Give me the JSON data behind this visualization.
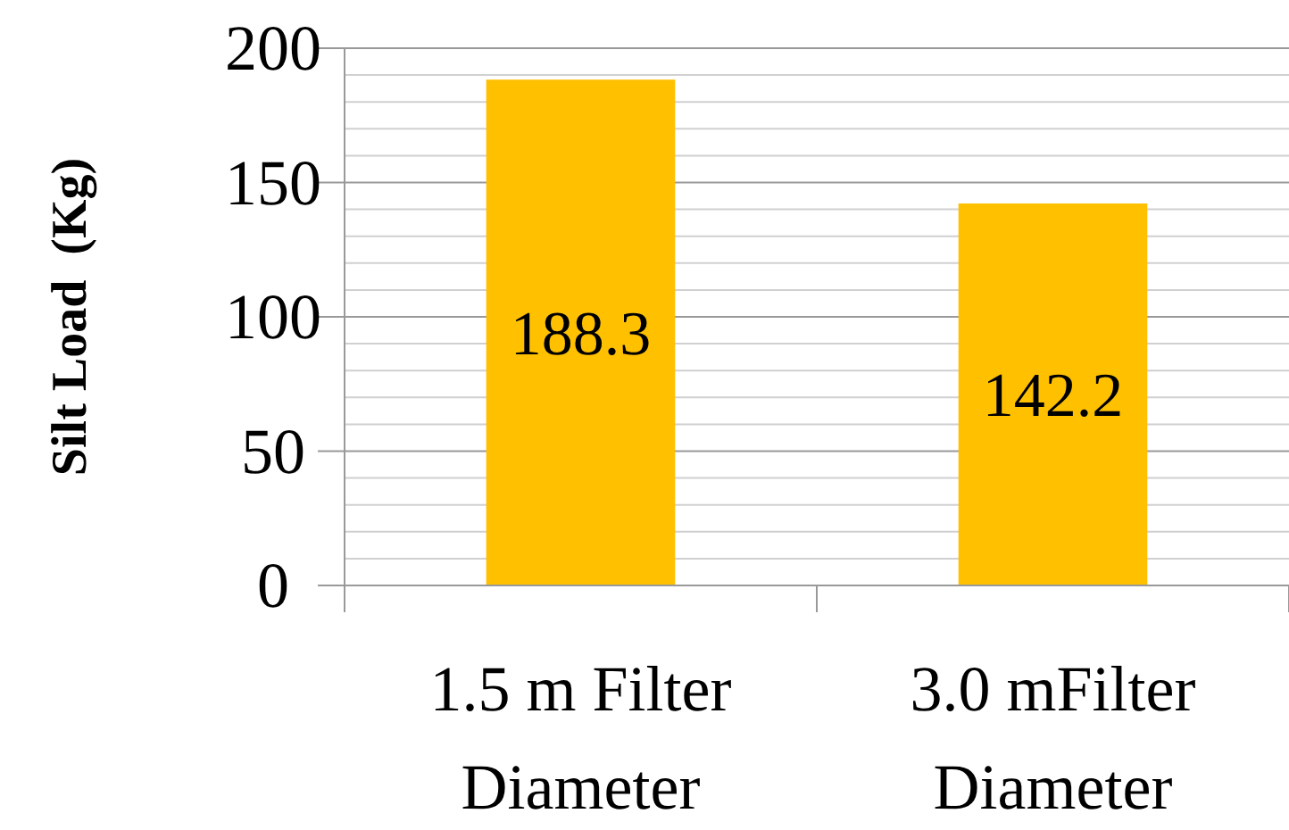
{
  "chart_data": {
    "type": "bar",
    "ylabel": "Silt Load  (Kg)",
    "categories": [
      "1.5 m Filter Diameter",
      "3.0 mFilter Diameter"
    ],
    "values": [
      188.3,
      142.2
    ],
    "color": "#ffc000",
    "data_labels": true,
    "ylim": [
      0,
      200
    ],
    "yticks": [
      0,
      {
        "value": 10,
        "label": null
      },
      {
        "value": 20,
        "label": null
      },
      {
        "value": 30,
        "label": null
      },
      {
        "value": 40,
        "label": null
      },
      50,
      {
        "value": 60,
        "label": null
      },
      {
        "value": 70,
        "label": null
      },
      {
        "value": 80,
        "label": null
      },
      {
        "value": 90,
        "label": null
      },
      100,
      {
        "value": 110,
        "label": null
      },
      {
        "value": 120,
        "label": null
      },
      {
        "value": 130,
        "label": null
      },
      {
        "value": 140,
        "label": null
      },
      150,
      {
        "value": 160,
        "label": null
      },
      {
        "value": 170,
        "label": null
      },
      {
        "value": 180,
        "label": null
      },
      {
        "value": 190,
        "label": null
      },
      200
    ],
    "grid": true
  }
}
